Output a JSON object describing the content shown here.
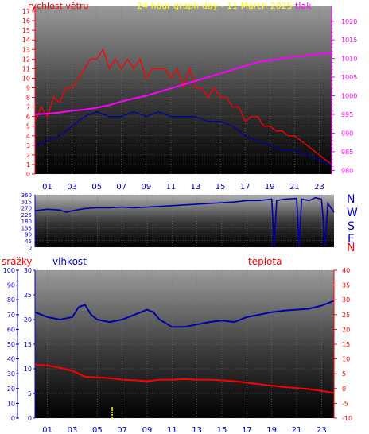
{
  "header": {
    "left_label": "rychlost větru",
    "center_title": "24 hour graph day - 11 March 2025",
    "right_label": "tlak"
  },
  "middle": {
    "compass_labels": [
      "N",
      "W",
      "S",
      "E",
      "N"
    ]
  },
  "bottom_header": {
    "rain_label": "srážky",
    "humidity_label": "vlhkost",
    "temp_label": "teplota"
  },
  "colors": {
    "wind": "#ff0000",
    "wind_dir": "#0000aa",
    "pressure": "#ff00ff",
    "humidity": "#0000aa",
    "temperature": "#ff0000",
    "rain": "#ffff00",
    "left_axis_text": "#ff0000",
    "pressure_axis_text": "#ff00ff",
    "humidity_axis_text": "#0000cc",
    "temp_axis_text": "#ff0000"
  },
  "chart_data": [
    {
      "type": "line",
      "name": "wind_pressure",
      "x_ticks": [
        "01",
        "03",
        "05",
        "07",
        "09",
        "11",
        "13",
        "15",
        "17",
        "19",
        "21",
        "23"
      ],
      "y_left_ticks": [
        0,
        1,
        2,
        3,
        4,
        5,
        6,
        7,
        8,
        9,
        10,
        11,
        12,
        13,
        14,
        15,
        16,
        17
      ],
      "y_left_range": [
        0,
        17.5
      ],
      "y_right_ticks": [
        980,
        985,
        990,
        995,
        1000,
        1005,
        1010,
        1015,
        1020
      ],
      "y_right_range": [
        979,
        1024
      ],
      "x_range": [
        0,
        24
      ],
      "series": [
        {
          "name": "rychlost větru",
          "color": "#ff0000",
          "points": [
            [
              0,
              5.5
            ],
            [
              0.5,
              7
            ],
            [
              1,
              6
            ],
            [
              1.5,
              8
            ],
            [
              2,
              7.5
            ],
            [
              2.5,
              9
            ],
            [
              3,
              9
            ],
            [
              3.5,
              10
            ],
            [
              4,
              11
            ],
            [
              4.5,
              12
            ],
            [
              5,
              12
            ],
            [
              5.5,
              13
            ],
            [
              6,
              11
            ],
            [
              6.5,
              12
            ],
            [
              7,
              11
            ],
            [
              7.5,
              12
            ],
            [
              8,
              11
            ],
            [
              8.5,
              12
            ],
            [
              9,
              10
            ],
            [
              9.5,
              11
            ],
            [
              10,
              11
            ],
            [
              10.5,
              11
            ],
            [
              11,
              10
            ],
            [
              11.5,
              11
            ],
            [
              12,
              9
            ],
            [
              12.5,
              11
            ],
            [
              13,
              9
            ],
            [
              13.5,
              9
            ],
            [
              14,
              8
            ],
            [
              14.5,
              9
            ],
            [
              15,
              8
            ],
            [
              15.5,
              8
            ],
            [
              16,
              7
            ],
            [
              16.5,
              7
            ],
            [
              17,
              5.5
            ],
            [
              17.5,
              6
            ],
            [
              18,
              6
            ],
            [
              18.5,
              5
            ],
            [
              19,
              5
            ],
            [
              19.5,
              4.5
            ],
            [
              20,
              4.5
            ],
            [
              20.5,
              4
            ],
            [
              21,
              4
            ],
            [
              21.5,
              3.5
            ],
            [
              22,
              3
            ],
            [
              22.5,
              2.5
            ],
            [
              23,
              2
            ],
            [
              23.5,
              1.5
            ],
            [
              24,
              1
            ]
          ]
        },
        {
          "name": "gust_low",
          "color": "#0000aa",
          "points": [
            [
              0,
              3
            ],
            [
              1,
              3.5
            ],
            [
              2,
              4
            ],
            [
              3,
              5
            ],
            [
              4,
              6
            ],
            [
              5,
              6.5
            ],
            [
              6,
              6
            ],
            [
              7,
              6
            ],
            [
              8,
              6.5
            ],
            [
              9,
              6
            ],
            [
              10,
              6.5
            ],
            [
              11,
              6
            ],
            [
              12,
              6
            ],
            [
              13,
              6
            ],
            [
              14,
              5.5
            ],
            [
              15,
              5.5
            ],
            [
              16,
              5
            ],
            [
              17,
              4
            ],
            [
              18,
              3.5
            ],
            [
              19,
              3
            ],
            [
              20,
              2.5
            ],
            [
              21,
              2.5
            ],
            [
              22,
              2
            ],
            [
              23,
              1.5
            ],
            [
              24,
              1
            ]
          ]
        },
        {
          "name": "tlak",
          "color": "#ff00ff",
          "axis": "right",
          "points": [
            [
              0,
              995
            ],
            [
              1,
              995.2
            ],
            [
              2,
              995.5
            ],
            [
              3,
              996
            ],
            [
              4,
              996.3
            ],
            [
              5,
              996.8
            ],
            [
              6,
              997.5
            ],
            [
              7,
              998.5
            ],
            [
              8,
              999.3
            ],
            [
              9,
              1000
            ],
            [
              10,
              1001
            ],
            [
              11,
              1002
            ],
            [
              12,
              1003
            ],
            [
              13,
              1004
            ],
            [
              14,
              1005
            ],
            [
              15,
              1006
            ],
            [
              16,
              1007
            ],
            [
              17,
              1008
            ],
            [
              18,
              1009
            ],
            [
              19,
              1009.5
            ],
            [
              20,
              1010
            ],
            [
              21,
              1010.5
            ],
            [
              22,
              1010.8
            ],
            [
              23,
              1011.2
            ],
            [
              24,
              1011.5
            ]
          ]
        }
      ]
    },
    {
      "type": "line",
      "name": "wind_direction",
      "y_ticks": [
        0,
        45,
        90,
        135,
        180,
        225,
        270,
        315,
        360
      ],
      "y_range": [
        0,
        360
      ],
      "x_range": [
        0,
        24
      ],
      "series": [
        {
          "name": "směr větru",
          "color": "#0000aa",
          "points": [
            [
              0,
              250
            ],
            [
              1,
              260
            ],
            [
              2,
              255
            ],
            [
              2.5,
              240
            ],
            [
              3,
              250
            ],
            [
              4,
              265
            ],
            [
              5,
              270
            ],
            [
              6,
              270
            ],
            [
              7,
              275
            ],
            [
              8,
              270
            ],
            [
              9,
              275
            ],
            [
              10,
              280
            ],
            [
              11,
              285
            ],
            [
              12,
              290
            ],
            [
              13,
              295
            ],
            [
              14,
              300
            ],
            [
              15,
              305
            ],
            [
              16,
              310
            ],
            [
              17,
              320
            ],
            [
              18,
              320
            ],
            [
              19,
              330
            ],
            [
              19.2,
              0
            ],
            [
              19.4,
              320
            ],
            [
              20,
              330
            ],
            [
              21,
              335
            ],
            [
              21.2,
              0
            ],
            [
              21.4,
              330
            ],
            [
              22,
              320
            ],
            [
              22.5,
              340
            ],
            [
              23,
              330
            ],
            [
              23.3,
              10
            ],
            [
              23.5,
              300
            ],
            [
              24,
              240
            ]
          ]
        }
      ]
    },
    {
      "type": "line",
      "name": "rain_humidity_temp",
      "x_ticks": [
        "01",
        "03",
        "05",
        "07",
        "09",
        "11",
        "13",
        "15",
        "17",
        "19",
        "21",
        "23"
      ],
      "x_range": [
        0,
        24
      ],
      "rain_ticks": [
        0,
        10,
        20,
        30,
        40,
        50,
        60,
        70,
        80,
        90,
        100
      ],
      "rain_range": [
        0,
        100
      ],
      "humidity_ticks": [
        0,
        5,
        10,
        15,
        20,
        25,
        30
      ],
      "humidity_range": [
        0,
        30
      ],
      "temp_ticks": [
        -10,
        -5,
        0,
        5,
        10,
        15,
        20,
        25,
        30,
        35,
        40
      ],
      "temp_range": [
        -10,
        40
      ],
      "series": [
        {
          "name": "vlhkost",
          "color": "#0000aa",
          "axis": "humidity",
          "points": [
            [
              0,
              21.5
            ],
            [
              1,
              20.5
            ],
            [
              2,
              20
            ],
            [
              3,
              20.5
            ],
            [
              3.5,
              22.5
            ],
            [
              4,
              23
            ],
            [
              4.5,
              21
            ],
            [
              5,
              20
            ],
            [
              6,
              19.5
            ],
            [
              7,
              20
            ],
            [
              8,
              21
            ],
            [
              9,
              22
            ],
            [
              9.5,
              21.5
            ],
            [
              10,
              20
            ],
            [
              11,
              18.5
            ],
            [
              12,
              18.5
            ],
            [
              13,
              19
            ],
            [
              14,
              19.5
            ],
            [
              15,
              19.8
            ],
            [
              16,
              19.5
            ],
            [
              17,
              20.5
            ],
            [
              18,
              21
            ],
            [
              19,
              21.5
            ],
            [
              20,
              21.8
            ],
            [
              21,
              22
            ],
            [
              22,
              22.2
            ],
            [
              23,
              22.8
            ],
            [
              24,
              23.8
            ]
          ]
        },
        {
          "name": "teplota",
          "color": "#ff0000",
          "axis": "temp",
          "points": [
            [
              0,
              8
            ],
            [
              1,
              7.8
            ],
            [
              2,
              7
            ],
            [
              3,
              6
            ],
            [
              4,
              4
            ],
            [
              5,
              3.8
            ],
            [
              6,
              3.5
            ],
            [
              7,
              3
            ],
            [
              8,
              2.8
            ],
            [
              9,
              2.5
            ],
            [
              10,
              3
            ],
            [
              11,
              3
            ],
            [
              12,
              3.2
            ],
            [
              13,
              3
            ],
            [
              14,
              3
            ],
            [
              15,
              2.8
            ],
            [
              16,
              2.5
            ],
            [
              17,
              2
            ],
            [
              18,
              1.5
            ],
            [
              19,
              1
            ],
            [
              20,
              0.5
            ],
            [
              21,
              0.2
            ],
            [
              22,
              -0.2
            ],
            [
              23,
              -0.8
            ],
            [
              24,
              -1.5
            ]
          ]
        },
        {
          "name": "srážky",
          "color": "#ffff00",
          "axis": "rain",
          "points": [
            [
              6.2,
              0
            ],
            [
              6.2,
              8
            ]
          ]
        }
      ]
    }
  ]
}
